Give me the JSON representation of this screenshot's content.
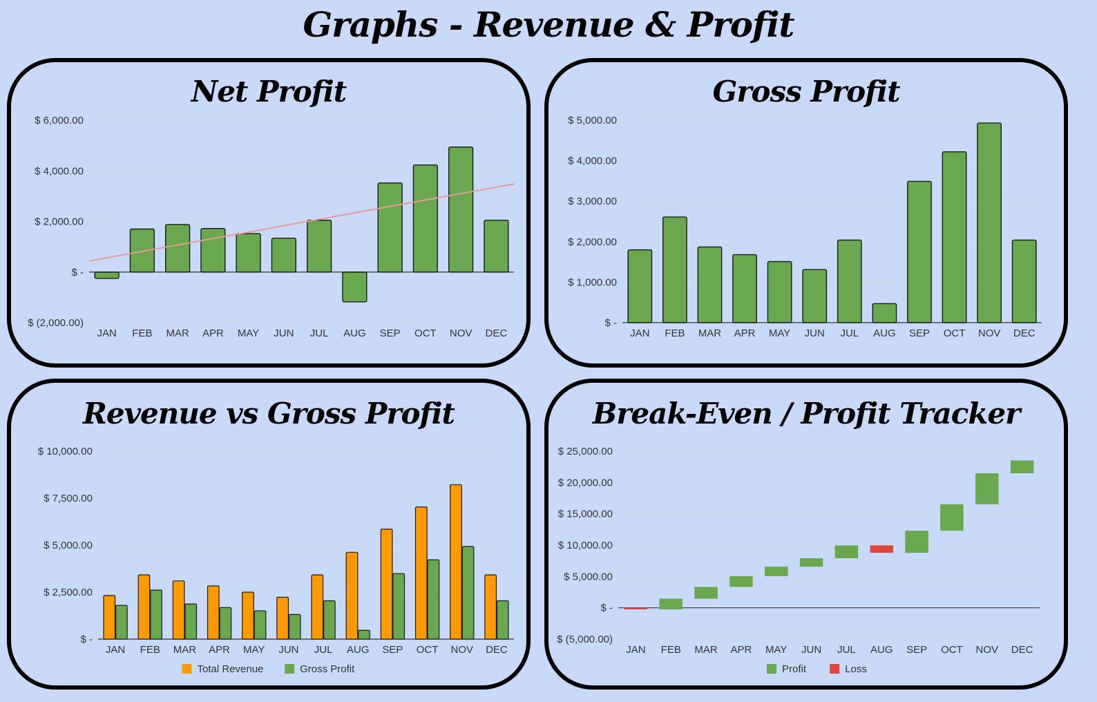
{
  "page": {
    "title": "Graphs - Revenue & Profit"
  },
  "months": [
    "JAN",
    "FEB",
    "MAR",
    "APR",
    "MAY",
    "JUN",
    "JUL",
    "AUG",
    "SEP",
    "OCT",
    "NOV",
    "DEC"
  ],
  "colors": {
    "green": "#6aa84f",
    "orange": "#ff9900",
    "red": "#e0443a",
    "trend": "#e89a9a",
    "grid": "#d6dcea",
    "zero": "#333333"
  },
  "panels": {
    "net_profit": {
      "title": "Net Profit"
    },
    "gross_profit": {
      "title": "Gross Profit"
    },
    "revenue_vs_gross": {
      "title": "Revenue vs Gross Profit"
    },
    "break_even": {
      "title": "Break-Even / Profit Tracker"
    }
  },
  "chart_data": [
    {
      "id": "net_profit",
      "type": "bar",
      "title": "Net Profit",
      "categories": [
        "JAN",
        "FEB",
        "MAR",
        "APR",
        "MAY",
        "JUN",
        "JUL",
        "AUG",
        "SEP",
        "OCT",
        "NOV",
        "DEC"
      ],
      "values": [
        -250,
        1700,
        1880,
        1720,
        1520,
        1340,
        2050,
        -1180,
        3520,
        4230,
        4940,
        2050
      ],
      "ylim": [
        -2000,
        6000
      ],
      "yticks": [
        -2000,
        0,
        2000,
        4000,
        6000
      ],
      "ytick_labels": [
        "$ (2,000.00)",
        "$ -",
        "$ 2,000.00",
        "$ 4,000.00",
        "$ 6,000.00"
      ],
      "trendline": true,
      "color": "#6aa84f"
    },
    {
      "id": "gross_profit",
      "type": "bar",
      "title": "Gross Profit",
      "categories": [
        "JAN",
        "FEB",
        "MAR",
        "APR",
        "MAY",
        "JUN",
        "JUL",
        "AUG",
        "SEP",
        "OCT",
        "NOV",
        "DEC"
      ],
      "values": [
        1800,
        2610,
        1870,
        1680,
        1510,
        1310,
        2040,
        470,
        3490,
        4220,
        4930,
        2040
      ],
      "ylim": [
        0,
        5000
      ],
      "yticks": [
        0,
        1000,
        2000,
        3000,
        4000,
        5000
      ],
      "ytick_labels": [
        "$ -",
        "$ 1,000.00",
        "$ 2,000.00",
        "$ 3,000.00",
        "$ 4,000.00",
        "$ 5,000.00"
      ],
      "color": "#6aa84f"
    },
    {
      "id": "revenue_vs_gross",
      "type": "bar",
      "title": "Revenue vs Gross Profit",
      "categories": [
        "JAN",
        "FEB",
        "MAR",
        "APR",
        "MAY",
        "JUN",
        "JUL",
        "AUG",
        "SEP",
        "OCT",
        "NOV",
        "DEC"
      ],
      "series": [
        {
          "name": "Total Revenue",
          "color": "#ff9900",
          "values": [
            2320,
            3420,
            3100,
            2830,
            2500,
            2230,
            3420,
            4620,
            5850,
            7030,
            8220,
            3420
          ]
        },
        {
          "name": "Gross Profit",
          "color": "#6aa84f",
          "values": [
            1800,
            2610,
            1870,
            1680,
            1510,
            1310,
            2040,
            470,
            3490,
            4220,
            4930,
            2040
          ]
        }
      ],
      "ylim": [
        0,
        10000
      ],
      "yticks": [
        0,
        2500,
        5000,
        7500,
        10000
      ],
      "ytick_labels": [
        "$ -",
        "$ 2,500.00",
        "$ 5,000.00",
        "$ 7,500.00",
        "$ 10,000.00"
      ],
      "legend": "bottom"
    },
    {
      "id": "break_even",
      "type": "bar",
      "subtype": "waterfall",
      "title": "Break-Even / Profit Tracker",
      "categories": [
        "JAN",
        "FEB",
        "MAR",
        "APR",
        "MAY",
        "JUN",
        "JUL",
        "AUG",
        "SEP",
        "OCT",
        "NOV",
        "DEC"
      ],
      "changes": [
        -250,
        1700,
        1880,
        1720,
        1520,
        1340,
        2050,
        -1180,
        3520,
        4230,
        4940,
        2050
      ],
      "series": [
        {
          "name": "Profit",
          "color": "#6aa84f"
        },
        {
          "name": "Loss",
          "color": "#e0443a"
        }
      ],
      "ylim": [
        -5000,
        25000
      ],
      "yticks": [
        -5000,
        0,
        5000,
        10000,
        15000,
        20000,
        25000
      ],
      "ytick_labels": [
        "$ (5,000.00)",
        "$ -",
        "$ 5,000.00",
        "$ 10,000.00",
        "$ 15,000.00",
        "$ 20,000.00",
        "$ 25,000.00"
      ],
      "legend": "bottom"
    }
  ]
}
